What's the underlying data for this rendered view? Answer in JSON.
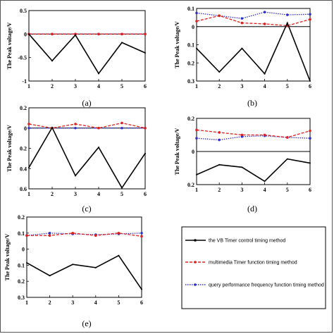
{
  "chart_data": [
    {
      "id": "a",
      "type": "line",
      "caption": "(a)",
      "ylabel": "The Peak voltage/V",
      "x": [
        1,
        2,
        3,
        4,
        5,
        6
      ],
      "ylim": [
        -1,
        0.5
      ],
      "yticks": [
        0.5,
        0,
        -0.5,
        -1
      ],
      "yticklabels": [
        "0.5",
        "0",
        "-0.5",
        "-1"
      ],
      "zero_line": true,
      "series": [
        {
          "values": [
            0,
            -0.57,
            -0.02,
            -0.84,
            -0.18,
            -0.4
          ],
          "color": "#000000"
        },
        {
          "values": [
            0,
            0,
            0,
            0,
            0,
            0
          ],
          "color": "#e02020"
        },
        {
          "values": [
            0,
            0,
            0,
            0,
            0,
            0
          ],
          "color": "#3030c8"
        }
      ]
    },
    {
      "id": "b",
      "type": "line",
      "caption": "(b)",
      "ylabel": "The Peak voltage/V",
      "x": [
        1,
        2,
        3,
        4,
        5,
        6
      ],
      "ylim": [
        -0.3,
        0.1
      ],
      "yticks": [
        0.1,
        0,
        -0.1,
        -0.2,
        -0.3
      ],
      "yticklabels": [
        "0.1",
        "0",
        "0.1",
        "0.2",
        "0.3"
      ],
      "zero_line": true,
      "series": [
        {
          "values": [
            -0.12,
            -0.25,
            -0.12,
            -0.26,
            0.02,
            -0.3
          ],
          "color": "#000000"
        },
        {
          "values": [
            0.03,
            0.06,
            0.02,
            0.015,
            0.005,
            0.04
          ],
          "color": "#e02020"
        },
        {
          "values": [
            0.075,
            0.06,
            0.045,
            0.08,
            0.065,
            0.068
          ],
          "color": "#3030c8"
        }
      ]
    },
    {
      "id": "c",
      "type": "line",
      "caption": "(c)",
      "ylabel": "The Peak voltage/V",
      "x": [
        1,
        2,
        3,
        4,
        5,
        6
      ],
      "ylim": [
        -0.6,
        0.2
      ],
      "yticks": [
        0.2,
        0,
        -0.2,
        -0.4,
        -0.6
      ],
      "yticklabels": [
        "0.2",
        "0",
        "0.2",
        "0.4",
        "0.6"
      ],
      "zero_line": true,
      "series": [
        {
          "values": [
            -0.39,
            0.005,
            -0.47,
            -0.19,
            -0.59,
            -0.25
          ],
          "color": "#000000"
        },
        {
          "values": [
            0.04,
            0,
            0.04,
            0,
            0.05,
            0
          ],
          "color": "#e02020"
        },
        {
          "values": [
            0,
            0,
            0,
            0,
            0,
            0
          ],
          "color": "#3030c8"
        }
      ]
    },
    {
      "id": "d",
      "type": "line",
      "caption": "(d)",
      "ylabel": "The Peak voltage/V",
      "x": [
        1,
        2,
        3,
        4,
        5,
        6
      ],
      "ylim": [
        -0.2,
        0.2
      ],
      "yticks": [
        0.2,
        0,
        -0.2
      ],
      "yticklabels": [
        "0.2",
        "0",
        "0.2"
      ],
      "zero_line": true,
      "series": [
        {
          "values": [
            -0.14,
            -0.08,
            -0.095,
            -0.18,
            -0.045,
            -0.07
          ],
          "color": "#000000"
        },
        {
          "values": [
            0.13,
            0.115,
            0.1,
            0.1,
            0.085,
            0.125
          ],
          "color": "#e02020"
        },
        {
          "values": [
            0.08,
            0.07,
            0.09,
            0.095,
            0.085,
            0.08
          ],
          "color": "#3030c8"
        }
      ]
    },
    {
      "id": "e",
      "type": "line",
      "caption": "(e)",
      "ylabel": "The Peak voltage/V",
      "x": [
        1,
        2,
        3,
        4,
        5,
        6
      ],
      "ylim": [
        -0.3,
        0.2
      ],
      "yticks": [
        0.2,
        0.1,
        0,
        -0.1,
        -0.2,
        -0.3
      ],
      "yticklabels": [
        "0.2",
        "0.1",
        "0",
        "0.1",
        "0.2",
        "0.3"
      ],
      "zero_line": false,
      "series": [
        {
          "values": [
            -0.085,
            -0.165,
            -0.095,
            -0.115,
            -0.04,
            -0.25
          ],
          "color": "#000000"
        },
        {
          "values": [
            0.085,
            0.085,
            0.1,
            0.085,
            0.1,
            0.08
          ],
          "color": "#e02020"
        },
        {
          "values": [
            0.085,
            0.1,
            0.095,
            0.09,
            0.095,
            0.1
          ],
          "color": "#3030c8"
        }
      ]
    }
  ],
  "legend": [
    {
      "label": "the VB Timer control timing method",
      "color": "#000000",
      "style": "solid"
    },
    {
      "label": "multimedia Timer function timing method",
      "color": "#e02020",
      "style": "dashed"
    },
    {
      "label": "query performance frequency function timing method",
      "color": "#3030c8",
      "style": "dotted"
    }
  ]
}
